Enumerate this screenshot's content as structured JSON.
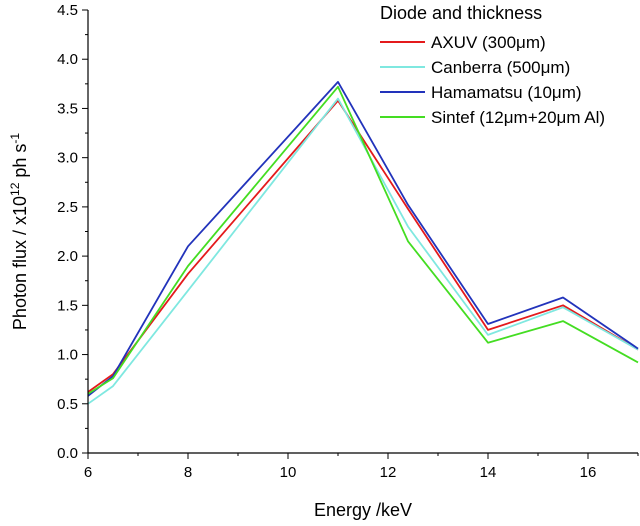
{
  "chart_data": {
    "type": "line",
    "xlabel": "Energy /keV",
    "ylabel_parts": [
      "Photon flux / x10",
      "12",
      " ph s",
      "-1"
    ],
    "xlim": [
      6,
      17
    ],
    "ylim": [
      0,
      4.5
    ],
    "x_ticks": [
      6,
      8,
      10,
      12,
      14,
      16
    ],
    "y_ticks": [
      0.0,
      0.5,
      1.0,
      1.5,
      2.0,
      2.5,
      3.0,
      3.5,
      4.0,
      4.5
    ],
    "legend": {
      "title": "Diode and thickness",
      "position": "top-right"
    },
    "series": [
      {
        "name": "AXUV (300μm)",
        "color": "#e41a1c",
        "x": [
          6,
          6.5,
          8,
          11,
          12.4,
          14,
          15.5,
          17
        ],
        "y": [
          0.62,
          0.8,
          1.82,
          3.58,
          2.48,
          1.25,
          1.5,
          1.05
        ]
      },
      {
        "name": "Canberra (500μm)",
        "color": "#7fe8e0",
        "x": [
          6,
          6.5,
          8,
          11,
          12.4,
          14,
          15.5,
          17
        ],
        "y": [
          0.5,
          0.68,
          1.65,
          3.6,
          2.3,
          1.2,
          1.48,
          1.05
        ]
      },
      {
        "name": "Hamamatsu (10μm)",
        "color": "#2233bb",
        "x": [
          6,
          6.5,
          8,
          11,
          12.4,
          14,
          15.5,
          17
        ],
        "y": [
          0.58,
          0.78,
          2.1,
          3.77,
          2.52,
          1.31,
          1.58,
          1.06
        ]
      },
      {
        "name": "Sintef (12μm+20μm Al)",
        "color": "#44dd22",
        "x": [
          6,
          6.5,
          8,
          11,
          12.4,
          14,
          15.5,
          17
        ],
        "y": [
          0.6,
          0.76,
          1.9,
          3.72,
          2.15,
          1.12,
          1.34,
          0.92
        ]
      }
    ]
  }
}
